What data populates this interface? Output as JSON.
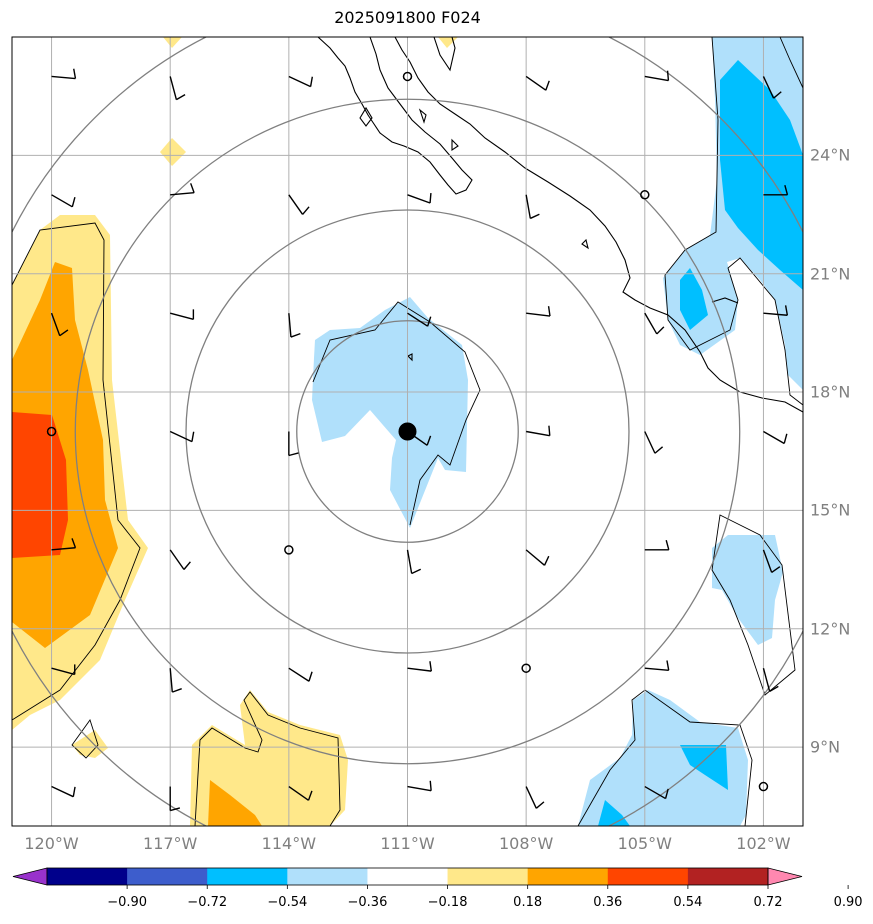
{
  "title": "2025091800 F024",
  "map": {
    "projection": "Lat/Lon",
    "center": {
      "lat": 17,
      "lon": -111
    },
    "lon_range": [
      -121,
      -101
    ],
    "lat_range": [
      7,
      27
    ],
    "storm_marker": {
      "lat": 17,
      "lon": -111
    },
    "range_rings": 4,
    "ring_color": "#808080",
    "gridline_color": "#b0b0b0",
    "coastline_color": "#000000"
  },
  "lon_labels": [
    "120°W",
    "117°W",
    "114°W",
    "111°W",
    "108°W",
    "105°W",
    "102°W"
  ],
  "lon_values": [
    -120,
    -117,
    -114,
    -111,
    -108,
    -105,
    -102
  ],
  "lat_labels": [
    "24°N",
    "21°N",
    "18°N",
    "15°N",
    "12°N",
    "9°N"
  ],
  "lat_values": [
    24,
    21,
    18,
    15,
    12,
    9
  ],
  "colorbar": {
    "labels": [
      "−0.90",
      "−0.72",
      "−0.54",
      "−0.36",
      "−0.18",
      "0.18",
      "0.36",
      "0.54",
      "0.72",
      "0.90"
    ],
    "boundaries": [
      -0.9,
      -0.72,
      -0.54,
      -0.36,
      -0.18,
      0.18,
      0.36,
      0.54,
      0.72,
      0.9
    ],
    "colors": [
      "#9932cc",
      "#00008b",
      "#3d5dcc",
      "#00bfff",
      "#b0e0fb",
      "#ffffff",
      "#ffe88a",
      "#ffa500",
      "#ff4500",
      "#b22222",
      "#ff88b0"
    ],
    "extend": "both"
  },
  "fill_colors": {
    "neg_light": "#b0e0fb",
    "neg_mid": "#00bfff",
    "pos_light": "#ffe88a",
    "pos_mid": "#ffa500",
    "pos_high": "#ff4500"
  }
}
